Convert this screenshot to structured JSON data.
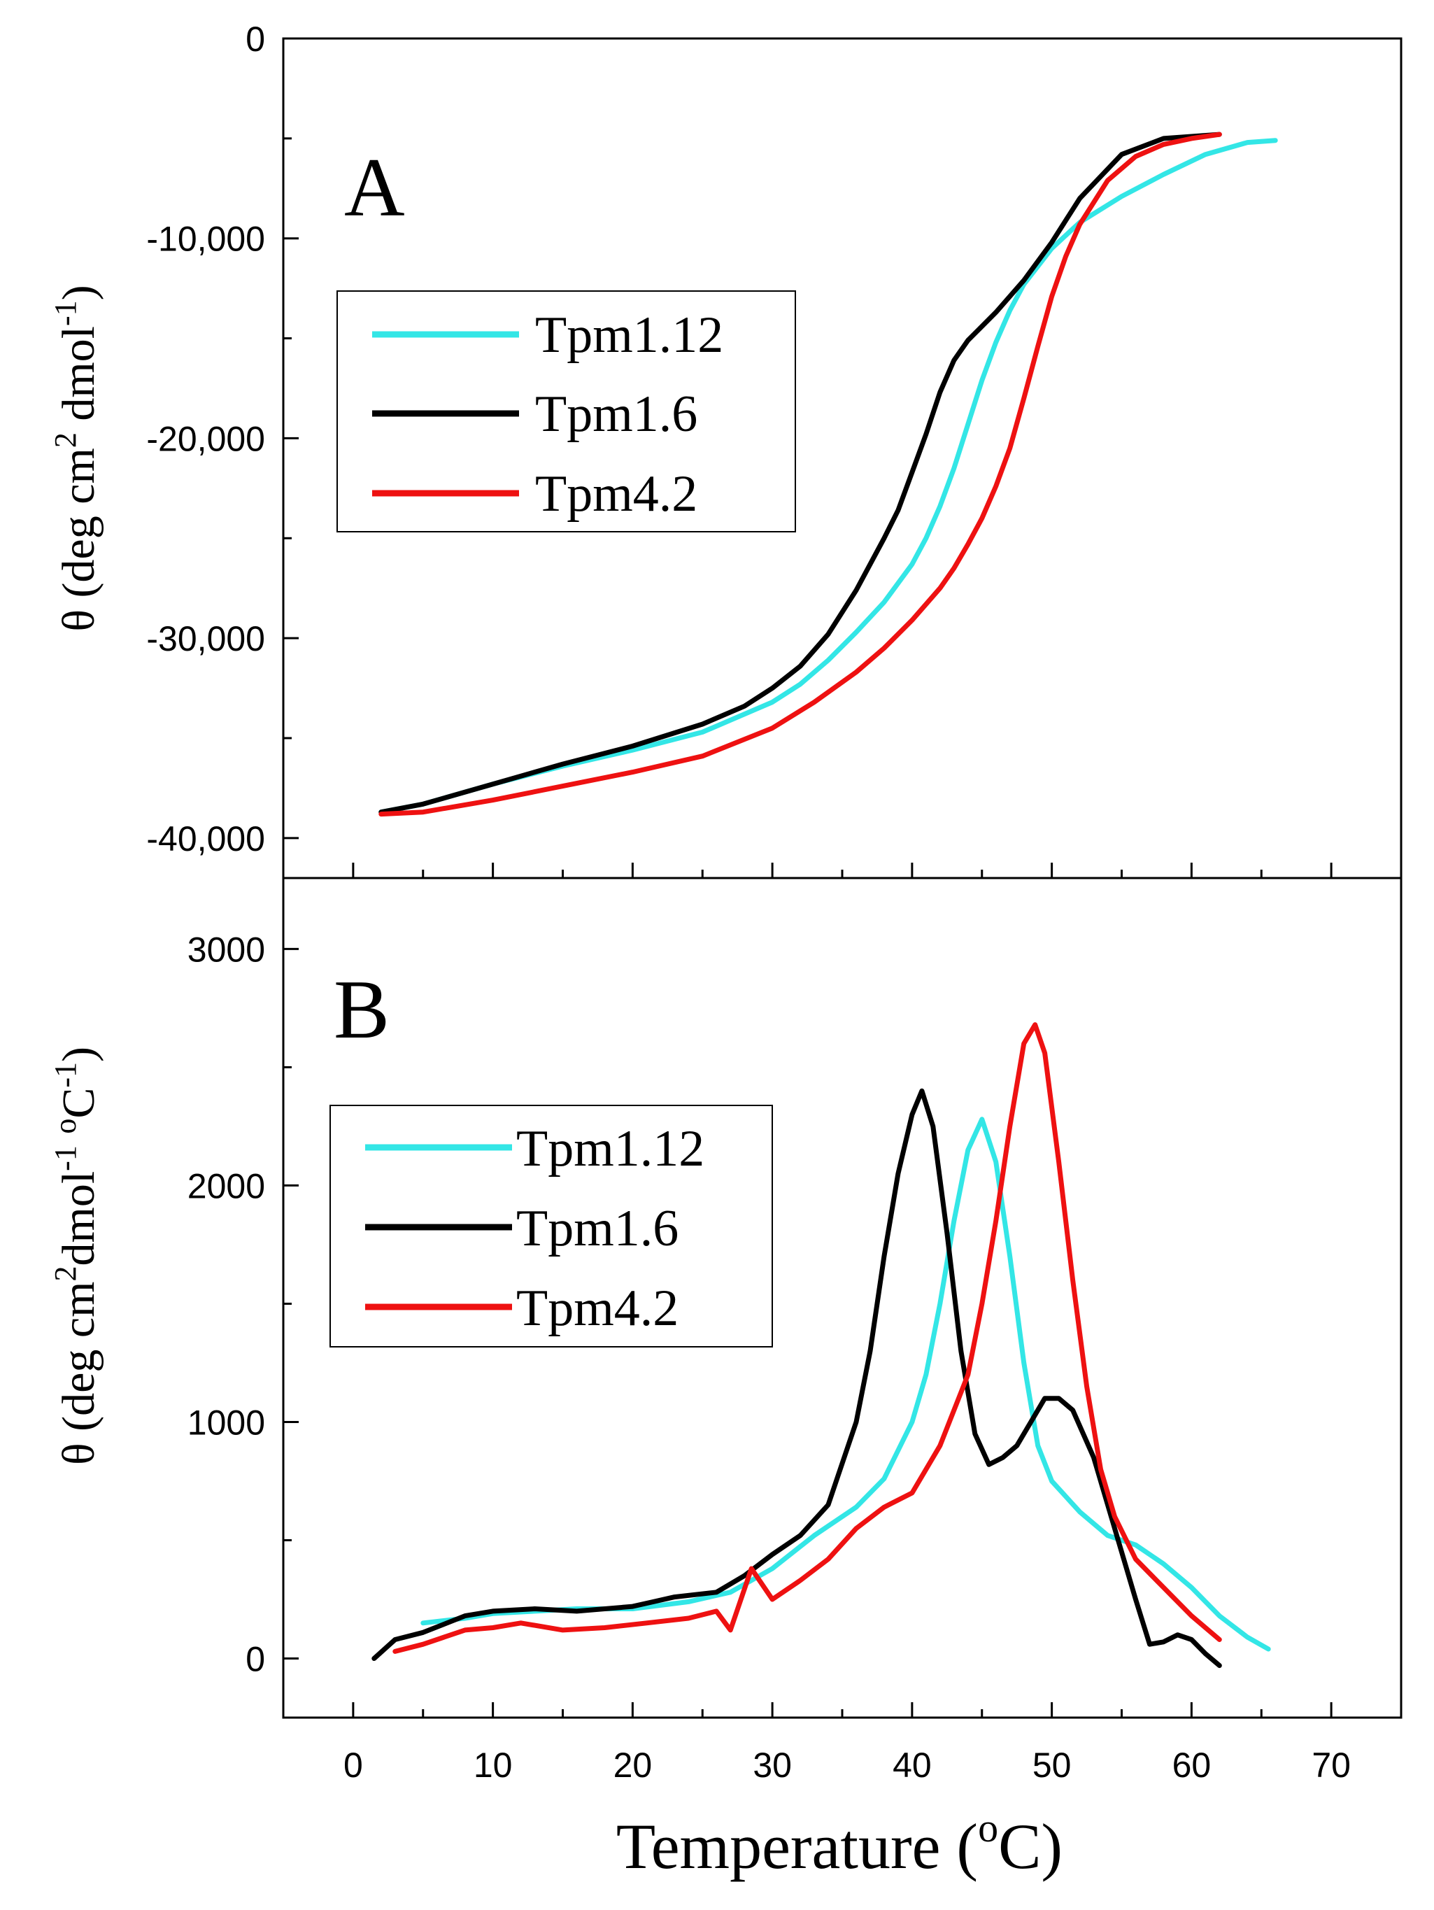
{
  "chart_data": [
    {
      "panel": "A",
      "type": "line",
      "ylabel": {
        "prefix": "θ (deg cm",
        "sup1": "2",
        "mid": " dmol",
        "sup2": "-1",
        "suffix": ")"
      },
      "xlim": [
        -5,
        75
      ],
      "ylim": [
        -42000,
        0
      ],
      "yticks": [
        0,
        -10000,
        -20000,
        -30000,
        -40000
      ],
      "ytick_labels": [
        "0",
        "-10,000",
        "-20,000",
        "-30,000",
        "-40,000"
      ],
      "legend_placement": "upper-left",
      "series": [
        {
          "name": "Tpm1.12",
          "color": "#33e6e6",
          "x": [
            2,
            5,
            10,
            15,
            20,
            25,
            30,
            32,
            34,
            36,
            38,
            40,
            41,
            42,
            43,
            44,
            45,
            46,
            47,
            48,
            50,
            52,
            55,
            58,
            61,
            64,
            66
          ],
          "y": [
            -38700,
            -38300,
            -37300,
            -36400,
            -35600,
            -34700,
            -33200,
            -32300,
            -31100,
            -29700,
            -28200,
            -26300,
            -25000,
            -23400,
            -21500,
            -19300,
            -17100,
            -15200,
            -13600,
            -12300,
            -10500,
            -9200,
            -7900,
            -6800,
            -5800,
            -5200,
            -5100
          ]
        },
        {
          "name": "Tpm1.6",
          "color": "#000000",
          "x": [
            2,
            5,
            10,
            15,
            20,
            25,
            28,
            30,
            32,
            34,
            36,
            38,
            39,
            40,
            41,
            42,
            43,
            44,
            45,
            46,
            47,
            48,
            50,
            52,
            55,
            58,
            60,
            62
          ],
          "y": [
            -38700,
            -38300,
            -37300,
            -36300,
            -35400,
            -34300,
            -33400,
            -32500,
            -31400,
            -29800,
            -27600,
            -25000,
            -23600,
            -21700,
            -19800,
            -17700,
            -16100,
            -15100,
            -14400,
            -13700,
            -12900,
            -12100,
            -10200,
            -8000,
            -5800,
            -5000,
            -4900,
            -4800
          ]
        },
        {
          "name": "Tpm4.2",
          "color": "#ee1111",
          "x": [
            2,
            5,
            10,
            15,
            20,
            25,
            30,
            33,
            36,
            38,
            40,
            42,
            43,
            44,
            45,
            46,
            47,
            48,
            49,
            50,
            51,
            52,
            54,
            56,
            58,
            60,
            62
          ],
          "y": [
            -38800,
            -38700,
            -38100,
            -37400,
            -36700,
            -35900,
            -34500,
            -33200,
            -31700,
            -30500,
            -29100,
            -27500,
            -26500,
            -25300,
            -24000,
            -22400,
            -20500,
            -18000,
            -15400,
            -12900,
            -10900,
            -9300,
            -7100,
            -5900,
            -5300,
            -5000,
            -4800
          ]
        }
      ]
    },
    {
      "panel": "B",
      "type": "line",
      "ylabel": {
        "prefix": "θ (deg cm",
        "sup1": "2",
        "mid": "dmol",
        "sup2": "-1",
        "mid2": " ",
        "sup3": "o",
        "mid3": "C",
        "sup4": "-1",
        "suffix": ")"
      },
      "xlabel": {
        "prefix": "Temperature (",
        "sup": "o",
        "suffix": "C)"
      },
      "xlim": [
        -5,
        75
      ],
      "ylim": [
        -250,
        3300
      ],
      "xticks": [
        0,
        10,
        20,
        30,
        40,
        50,
        60,
        70
      ],
      "xtick_labels": [
        "0",
        "10",
        "20",
        "30",
        "40",
        "50",
        "60",
        "70"
      ],
      "yticks": [
        0,
        1000,
        2000,
        3000
      ],
      "ytick_labels": [
        "0",
        "1000",
        "2000",
        "3000"
      ],
      "legend_placement": "upper-left",
      "series": [
        {
          "name": "Tpm1.12",
          "color": "#33e6e6",
          "x": [
            5,
            8,
            10,
            13,
            16,
            20,
            24,
            27,
            30,
            33,
            36,
            38,
            40,
            41,
            42,
            43,
            44,
            45,
            46,
            47,
            48,
            49,
            50,
            52,
            54,
            56,
            58,
            60,
            62,
            64,
            65.5
          ],
          "y": [
            150,
            170,
            190,
            200,
            210,
            210,
            240,
            280,
            380,
            520,
            640,
            760,
            1000,
            1200,
            1500,
            1850,
            2150,
            2280,
            2100,
            1700,
            1250,
            900,
            750,
            620,
            520,
            480,
            400,
            300,
            180,
            90,
            40
          ]
        },
        {
          "name": "Tpm1.6",
          "color": "#000000",
          "x": [
            1.5,
            3,
            5,
            8,
            10,
            13,
            16,
            20,
            23,
            26,
            28,
            30,
            32,
            34,
            36,
            37,
            38,
            39,
            40,
            40.7,
            41.5,
            42.5,
            43.5,
            44.5,
            45.5,
            46.5,
            47.5,
            48.5,
            49.5,
            50.5,
            51.5,
            53,
            54.5,
            56,
            57,
            58,
            59,
            60,
            61,
            62
          ],
          "y": [
            0,
            80,
            110,
            180,
            200,
            210,
            200,
            220,
            260,
            280,
            350,
            440,
            520,
            650,
            1000,
            1300,
            1700,
            2050,
            2300,
            2400,
            2250,
            1800,
            1300,
            950,
            820,
            850,
            900,
            1000,
            1100,
            1100,
            1050,
            850,
            550,
            250,
            60,
            70,
            100,
            80,
            20,
            -30
          ]
        },
        {
          "name": "Tpm4.2",
          "color": "#ee1111",
          "x": [
            3,
            5,
            8,
            10,
            12,
            15,
            18,
            21,
            24,
            26,
            27,
            28.5,
            30,
            32,
            34,
            36,
            38,
            40,
            42,
            44,
            45,
            46,
            47,
            48,
            48.8,
            49.5,
            50.5,
            51.5,
            52.5,
            53.5,
            54.5,
            56,
            58,
            60,
            62
          ],
          "y": [
            30,
            60,
            120,
            130,
            150,
            120,
            130,
            150,
            170,
            200,
            120,
            380,
            250,
            330,
            420,
            550,
            640,
            700,
            900,
            1200,
            1500,
            1850,
            2250,
            2600,
            2680,
            2560,
            2100,
            1600,
            1150,
            800,
            600,
            420,
            300,
            180,
            80
          ]
        }
      ]
    }
  ]
}
